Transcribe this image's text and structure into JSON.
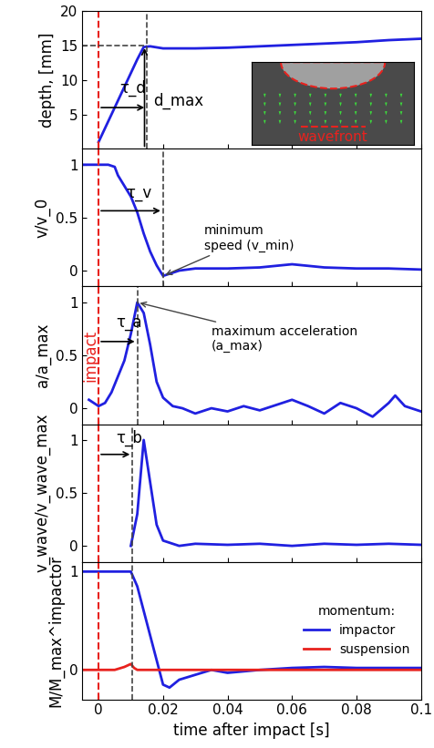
{
  "impact": {
    "label": "impact",
    "value": 0,
    "color": "#e8221e"
  },
  "chart_data": [
    {
      "type": "line",
      "ylabel": "depth, [mm]",
      "xlim": [
        -0.005,
        0.1
      ],
      "xticks": [
        0,
        0.02,
        0.04,
        0.06,
        0.08,
        0.1
      ],
      "ylim": [
        0,
        20
      ],
      "yticks": [
        5,
        10,
        15,
        20
      ],
      "tick_labels": "y",
      "series": [
        {
          "color": "#2020e0",
          "x": [
            0,
            0.002,
            0.004,
            0.006,
            0.008,
            0.01,
            0.012,
            0.014,
            0.016,
            0.02,
            0.03,
            0.04,
            0.05,
            0.06,
            0.07,
            0.08,
            0.09,
            0.1
          ],
          "values": [
            1,
            3,
            5,
            7,
            9,
            11,
            13,
            14.8,
            14.9,
            14.6,
            14.6,
            14.7,
            14.9,
            15.1,
            15.3,
            15.5,
            15.8,
            16.0
          ]
        }
      ],
      "tau": {
        "label": "τ_d",
        "value": 0.015
      },
      "max": {
        "label": "d_max",
        "value": 15
      },
      "inset": {
        "label": "wavefront"
      }
    },
    {
      "type": "line",
      "ylabel": "v/v_0",
      "xlim": [
        -0.005,
        0.1
      ],
      "xticks": [
        0,
        0.02,
        0.04,
        0.06,
        0.08,
        0.1
      ],
      "ylim": [
        -0.15,
        1.15
      ],
      "yticks": [
        0,
        0.5,
        1
      ],
      "tick_labels": "y",
      "series": [
        {
          "color": "#2020e0",
          "x": [
            -0.005,
            0,
            0.003,
            0.005,
            0.006,
            0.008,
            0.01,
            0.012,
            0.014,
            0.016,
            0.018,
            0.02,
            0.022,
            0.025,
            0.03,
            0.04,
            0.05,
            0.06,
            0.07,
            0.08,
            0.09,
            0.1
          ],
          "values": [
            1,
            1,
            1,
            0.98,
            0.9,
            0.8,
            0.7,
            0.55,
            0.35,
            0.18,
            0.05,
            -0.05,
            -0.03,
            0,
            0.02,
            0.02,
            0.03,
            0.06,
            0.03,
            0.02,
            0.02,
            0.01
          ]
        }
      ],
      "tau": {
        "label": "τ_v",
        "value": 0.02
      },
      "annotation": {
        "text": "minimum\nspeed (v_min)",
        "point": [
          0.02,
          -0.05
        ]
      }
    },
    {
      "type": "line",
      "ylabel": "a/a_max",
      "xlim": [
        -0.005,
        0.1
      ],
      "xticks": [
        0,
        0.02,
        0.04,
        0.06,
        0.08,
        0.1
      ],
      "ylim": [
        -0.15,
        1.15
      ],
      "yticks": [
        0,
        0.5,
        1
      ],
      "tick_labels": "y",
      "series": [
        {
          "color": "#2020e0",
          "x": [
            -0.003,
            0,
            0.002,
            0.004,
            0.006,
            0.008,
            0.01,
            0.012,
            0.014,
            0.016,
            0.018,
            0.02,
            0.023,
            0.026,
            0.03,
            0.035,
            0.04,
            0.045,
            0.05,
            0.055,
            0.06,
            0.065,
            0.07,
            0.075,
            0.08,
            0.085,
            0.09,
            0.092,
            0.095,
            0.1
          ],
          "values": [
            0.08,
            0.02,
            0.05,
            0.15,
            0.3,
            0.45,
            0.7,
            1.0,
            0.9,
            0.6,
            0.25,
            0.1,
            0.02,
            0,
            -0.05,
            0,
            -0.03,
            0.02,
            -0.02,
            0.03,
            0.08,
            0.02,
            -0.05,
            0.05,
            0,
            -0.08,
            0.05,
            0.12,
            0.02,
            -0.03
          ]
        }
      ],
      "tau": {
        "label": "τ_a",
        "value": 0.012
      },
      "annotation": {
        "text": "maximum acceleration\n(a_max)",
        "point": [
          0.012,
          1.0
        ]
      },
      "impact_text": true
    },
    {
      "type": "line",
      "ylabel": "v_wave/v_wave_max",
      "xlim": [
        -0.005,
        0.1
      ],
      "xticks": [
        0,
        0.02,
        0.04,
        0.06,
        0.08,
        0.1
      ],
      "ylim": [
        -0.15,
        1.15
      ],
      "yticks": [
        0,
        0.5,
        1
      ],
      "tick_labels": "y",
      "series": [
        {
          "color": "#2020e0",
          "x": [
            0.01,
            0.012,
            0.014,
            0.016,
            0.018,
            0.02,
            0.025,
            0.03,
            0.04,
            0.05,
            0.06,
            0.07,
            0.08,
            0.09,
            0.1
          ],
          "values": [
            0,
            0.3,
            1.0,
            0.6,
            0.2,
            0.05,
            0,
            0.02,
            0.01,
            0.02,
            0,
            0.02,
            0.01,
            0.02,
            0.01
          ]
        }
      ],
      "tau": {
        "label": "τ_b",
        "value": 0.0105
      }
    },
    {
      "type": "line",
      "ylabel": "M/M_max^impactor",
      "xlabel": "time after impact [s]",
      "xlim": [
        -0.005,
        0.1
      ],
      "xticks": [
        0,
        0.02,
        0.04,
        0.06,
        0.08,
        0.1
      ],
      "ylim": [
        -0.3,
        1.1
      ],
      "yticks": [
        0,
        1
      ],
      "legend": "center right",
      "legend_title": "momentum:",
      "series": [
        {
          "name": "impactor",
          "color": "#2020e0",
          "x": [
            -0.005,
            0.01,
            0.012,
            0.014,
            0.016,
            0.018,
            0.02,
            0.022,
            0.025,
            0.03,
            0.035,
            0.04,
            0.05,
            0.06,
            0.07,
            0.08,
            0.09,
            0.1
          ],
          "values": [
            1,
            1,
            0.85,
            0.6,
            0.35,
            0.1,
            -0.15,
            -0.18,
            -0.1,
            -0.05,
            0,
            -0.03,
            0,
            0.02,
            0.03,
            0.02,
            0.02,
            0.02
          ]
        },
        {
          "name": "suspension",
          "color": "#e8221e",
          "x": [
            -0.005,
            0.005,
            0.008,
            0.01,
            0.011,
            0.012,
            0.05,
            0.1
          ],
          "values": [
            0,
            0,
            0.03,
            0.06,
            0.02,
            0,
            0,
            0
          ]
        }
      ],
      "tau": {
        "label": "",
        "value": 0.0105
      }
    }
  ]
}
